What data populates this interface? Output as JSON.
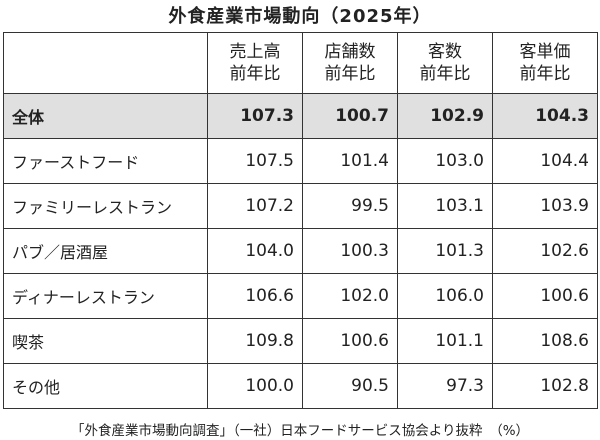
{
  "title": "外食産業市場動向（2025年）",
  "table": {
    "header": [
      [
        "売上高",
        "前年比"
      ],
      [
        "店舗数",
        "前年比"
      ],
      [
        "客数",
        "前年比"
      ],
      [
        "客単価",
        "前年比"
      ]
    ],
    "rows": [
      [
        "全体",
        "107.3",
        "100.7",
        "102.9",
        "104.3"
      ],
      [
        "ファーストフード",
        "107.5",
        "101.4",
        "103.0",
        "104.4"
      ],
      [
        "ファミリーレストラン",
        "107.2",
        "99.5",
        "103.1",
        "103.9"
      ],
      [
        "パブ／居酒屋",
        "104.0",
        "100.3",
        "101.3",
        "102.6"
      ],
      [
        "ディナーレストラン",
        "106.6",
        "102.0",
        "106.0",
        "100.6"
      ],
      [
        "喫茶",
        "109.8",
        "100.6",
        "101.1",
        "108.6"
      ],
      [
        "その他",
        "100.0",
        "90.5",
        "97.3",
        "102.8"
      ]
    ]
  },
  "note": "「外食産業市場動向調査」（一社）日本フードサービス協会より抜粋　（%）"
}
